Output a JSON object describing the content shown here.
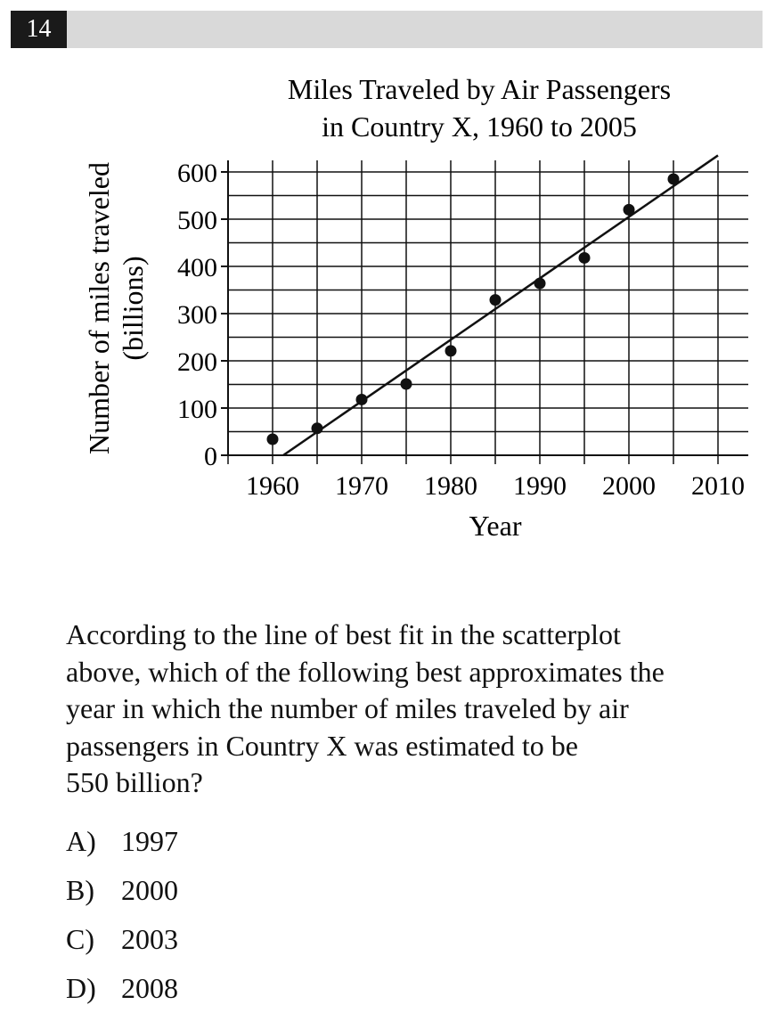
{
  "question_number": "14",
  "chart_data": {
    "type": "scatter",
    "title": [
      "Miles Traveled by Air Passengers",
      "in Country X, 1960 to 2005"
    ],
    "xlabel": "Year",
    "ylabel": [
      "Number of miles traveled",
      "(billions)"
    ],
    "xlim": [
      1955,
      2013
    ],
    "ylim": [
      0,
      620
    ],
    "x_ticks": [
      1960,
      1970,
      1980,
      1990,
      2000,
      2010
    ],
    "x_tick_labels": [
      "1960",
      "1970",
      "1980",
      "1990",
      "2000",
      "2010"
    ],
    "y_ticks": [
      0,
      100,
      200,
      300,
      400,
      500,
      600
    ],
    "y_tick_labels": [
      "0",
      "100",
      "200",
      "300",
      "400",
      "500",
      "600"
    ],
    "grid": true,
    "points": [
      {
        "x": 1960,
        "y": 34
      },
      {
        "x": 1965,
        "y": 57
      },
      {
        "x": 1970,
        "y": 118
      },
      {
        "x": 1975,
        "y": 151
      },
      {
        "x": 1980,
        "y": 221
      },
      {
        "x": 1985,
        "y": 329
      },
      {
        "x": 1990,
        "y": 364
      },
      {
        "x": 1995,
        "y": 418
      },
      {
        "x": 2000,
        "y": 520
      },
      {
        "x": 2005,
        "y": 585
      }
    ],
    "fit_line": {
      "x1": 1961.2,
      "y1": 0,
      "x2": 2010,
      "y2": 635
    }
  },
  "question_text": "According to the line of best fit in the scatterplot above, which of the following best approximates the year in which the number of miles traveled by air passengers in Country X was estimated to be 550 billion?",
  "question_lines": [
    "According to the line of best fit in the scatterplot",
    "above, which of the following best approximates the",
    "year in which the number of miles traveled by air",
    "passengers in Country X was estimated to be",
    "550 billion?"
  ],
  "choices": [
    {
      "letter": "A)",
      "value": "1997"
    },
    {
      "letter": "B)",
      "value": "2000"
    },
    {
      "letter": "C)",
      "value": "2003"
    },
    {
      "letter": "D)",
      "value": "2008"
    }
  ]
}
